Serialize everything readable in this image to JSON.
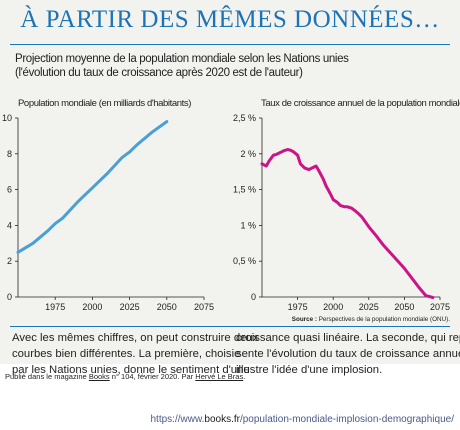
{
  "headline": "À PARTIR DES MÊMES DONNÉES…",
  "subtitle_1": "Projection moyenne de la population mondiale selon les Nations unies",
  "subtitle_2": "(l'évolution du taux de croissance après 2020 est de l'auteur)",
  "colors": {
    "accent": "#1c73b5",
    "line_population": "#4a9fd8",
    "line_growth": "#cc1387",
    "panel_bg": "#f2f2ee"
  },
  "chart_data": [
    {
      "type": "line",
      "title": "Population mondiale (en milliards d'habitants)",
      "xlabel": "",
      "ylabel": "",
      "xlim": [
        1950,
        2075
      ],
      "ylim": [
        0,
        10
      ],
      "x_ticks": [
        "1975",
        "2000",
        "2025",
        "2050",
        "2075"
      ],
      "y_ticks": [
        "0",
        "2",
        "4",
        "6",
        "8",
        "10"
      ],
      "series": [
        {
          "x": [
            1950,
            1960,
            1970,
            1975,
            1980,
            1990,
            2000,
            2010,
            2020,
            2025,
            2030,
            2040,
            2050
          ],
          "y": [
            2.5,
            3.0,
            3.7,
            4.1,
            4.4,
            5.3,
            6.1,
            6.9,
            7.8,
            8.1,
            8.5,
            9.2,
            9.8
          ]
        }
      ],
      "grid": false
    },
    {
      "type": "line",
      "title": "Taux de croissance annuel de la population mondiale",
      "xlabel": "",
      "ylabel": "",
      "xlim": [
        1950,
        2075
      ],
      "ylim": [
        0,
        2.5
      ],
      "x_ticks": [
        "1975",
        "2000",
        "2025",
        "2050",
        "2075"
      ],
      "y_ticks": [
        "0",
        "0,5 %",
        "1 %",
        "1,5 %",
        "2 %",
        "2,5 %"
      ],
      "series": [
        {
          "x": [
            1950,
            1953,
            1955,
            1958,
            1960,
            1963,
            1965,
            1968,
            1970,
            1972,
            1975,
            1977,
            1980,
            1983,
            1985,
            1988,
            1990,
            1993,
            1995,
            1998,
            2000,
            2003,
            2005,
            2008,
            2010,
            2013,
            2015,
            2018,
            2020,
            2025,
            2030,
            2035,
            2040,
            2045,
            2050,
            2055,
            2060,
            2065,
            2070
          ],
          "y": [
            1.86,
            1.83,
            1.9,
            1.98,
            1.99,
            2.02,
            2.04,
            2.06,
            2.05,
            2.03,
            1.98,
            1.86,
            1.8,
            1.78,
            1.8,
            1.83,
            1.76,
            1.65,
            1.55,
            1.44,
            1.36,
            1.32,
            1.28,
            1.26,
            1.26,
            1.24,
            1.21,
            1.16,
            1.12,
            0.98,
            0.86,
            0.73,
            0.62,
            0.51,
            0.4,
            0.27,
            0.14,
            0.02,
            -0.1
          ]
        }
      ],
      "grid": false
    }
  ],
  "source_label": "Source :",
  "source_text": "Perspectives de la population mondiale (ONU).",
  "caption_left": [
    "Avec les mêmes chiffres, on peut construire deux",
    "courbes bien différentes. La première, choisie",
    "par les Nations unies, donne le sentiment d'une"
  ],
  "caption_right": [
    "croissance quasi linéaire. La seconde, qui repré-",
    "sente l'évolution du taux de croissance annuel,",
    "illustre l'idée d'une implosion."
  ],
  "credit": {
    "prefix": "Publié dans le magazine",
    "magazine": "Books",
    "issue": "n° 104",
    "date": ", février 2020. Par",
    "author": "Hervé Le Bras",
    "end": "."
  },
  "url": {
    "prefix": "https://www.",
    "domain": "books.fr",
    "path": "/population-mondiale-implosion-demographique/"
  }
}
